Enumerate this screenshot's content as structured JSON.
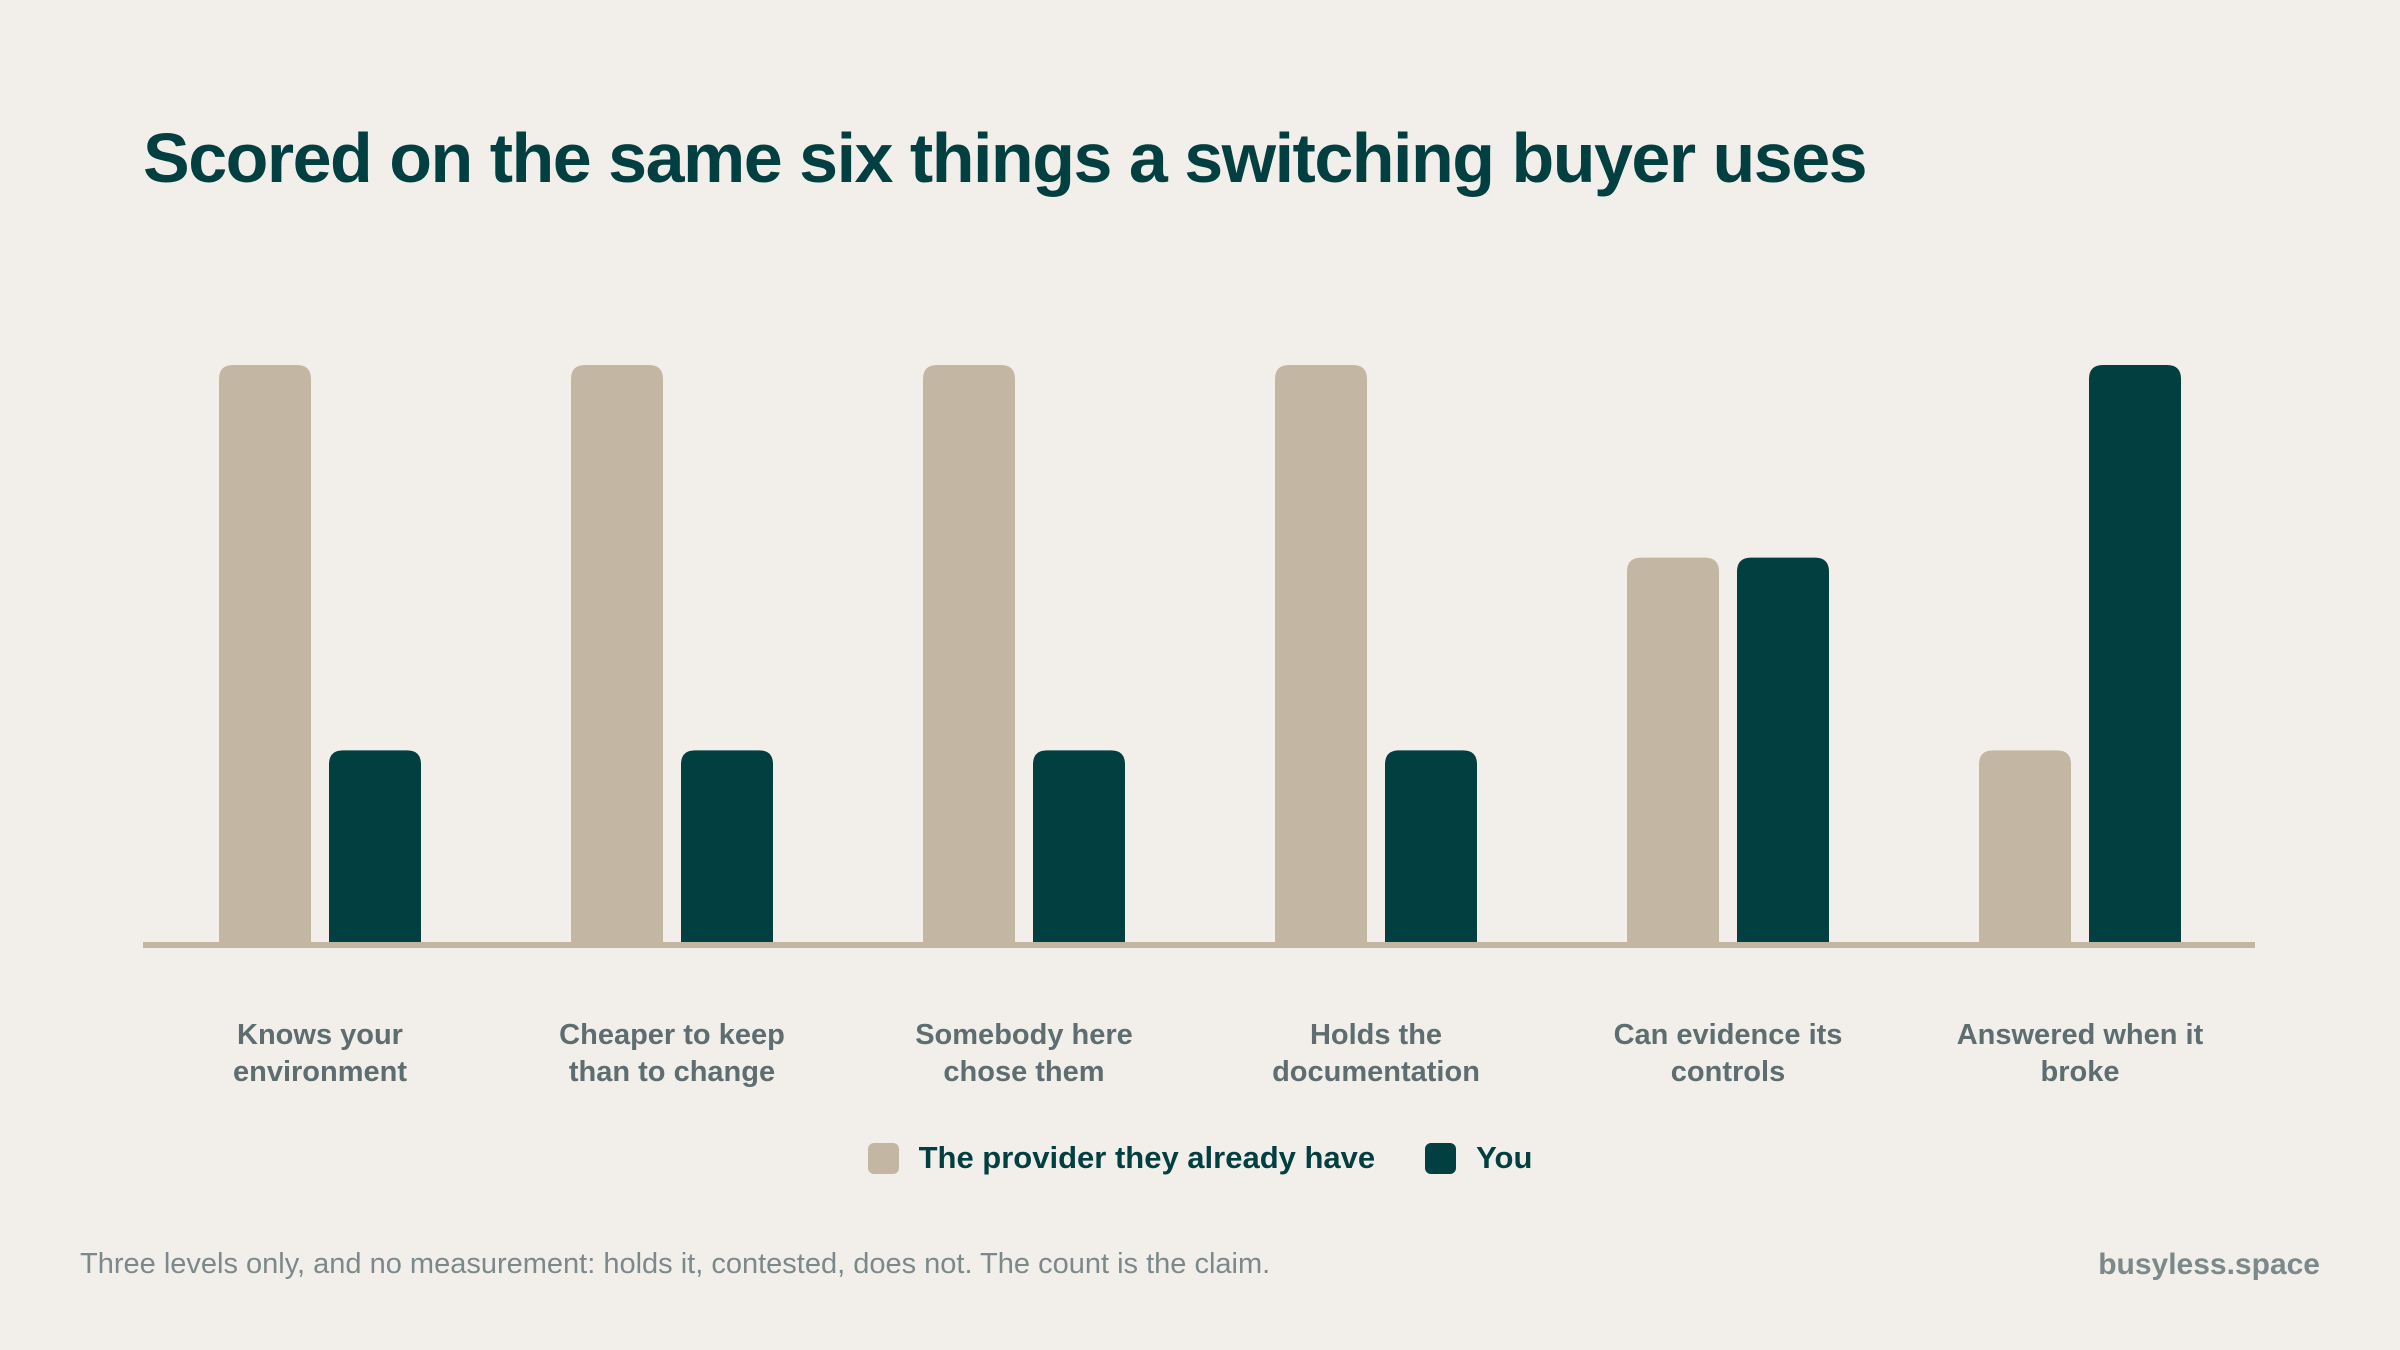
{
  "title": "Scored on the same six things a switching buyer uses",
  "chart_data": {
    "type": "bar",
    "title": "Scored on the same six things a switching buyer uses",
    "categories": [
      [
        "Knows your",
        "environment"
      ],
      [
        "Cheaper to keep",
        "than to change"
      ],
      [
        "Somebody here",
        "chose them"
      ],
      [
        "Holds the",
        "documentation"
      ],
      [
        "Can evidence its",
        "controls"
      ],
      [
        "Answered when it",
        "broke"
      ]
    ],
    "series": [
      {
        "name": "The provider they already have",
        "color": "#c3b7a4",
        "values": [
          3,
          3,
          3,
          3,
          2,
          1
        ]
      },
      {
        "name": "You",
        "color": "#023f40",
        "values": [
          1,
          1,
          1,
          1,
          2,
          3
        ]
      }
    ],
    "ylim": [
      0,
      3
    ],
    "xlabel": "",
    "ylabel": "",
    "legend_position": "bottom-center",
    "grid": false
  },
  "legend": [
    {
      "label": "The provider they already have",
      "color": "#c3b7a4"
    },
    {
      "label": "You",
      "color": "#023f40"
    }
  ],
  "footnote": "Three levels only, and no measurement: holds it, contested, does not. The count is the claim.",
  "brand": "busyless.space",
  "colors": {
    "background": "#f2efea",
    "accent": "#023f40",
    "baseline": "#c3b7a4"
  }
}
